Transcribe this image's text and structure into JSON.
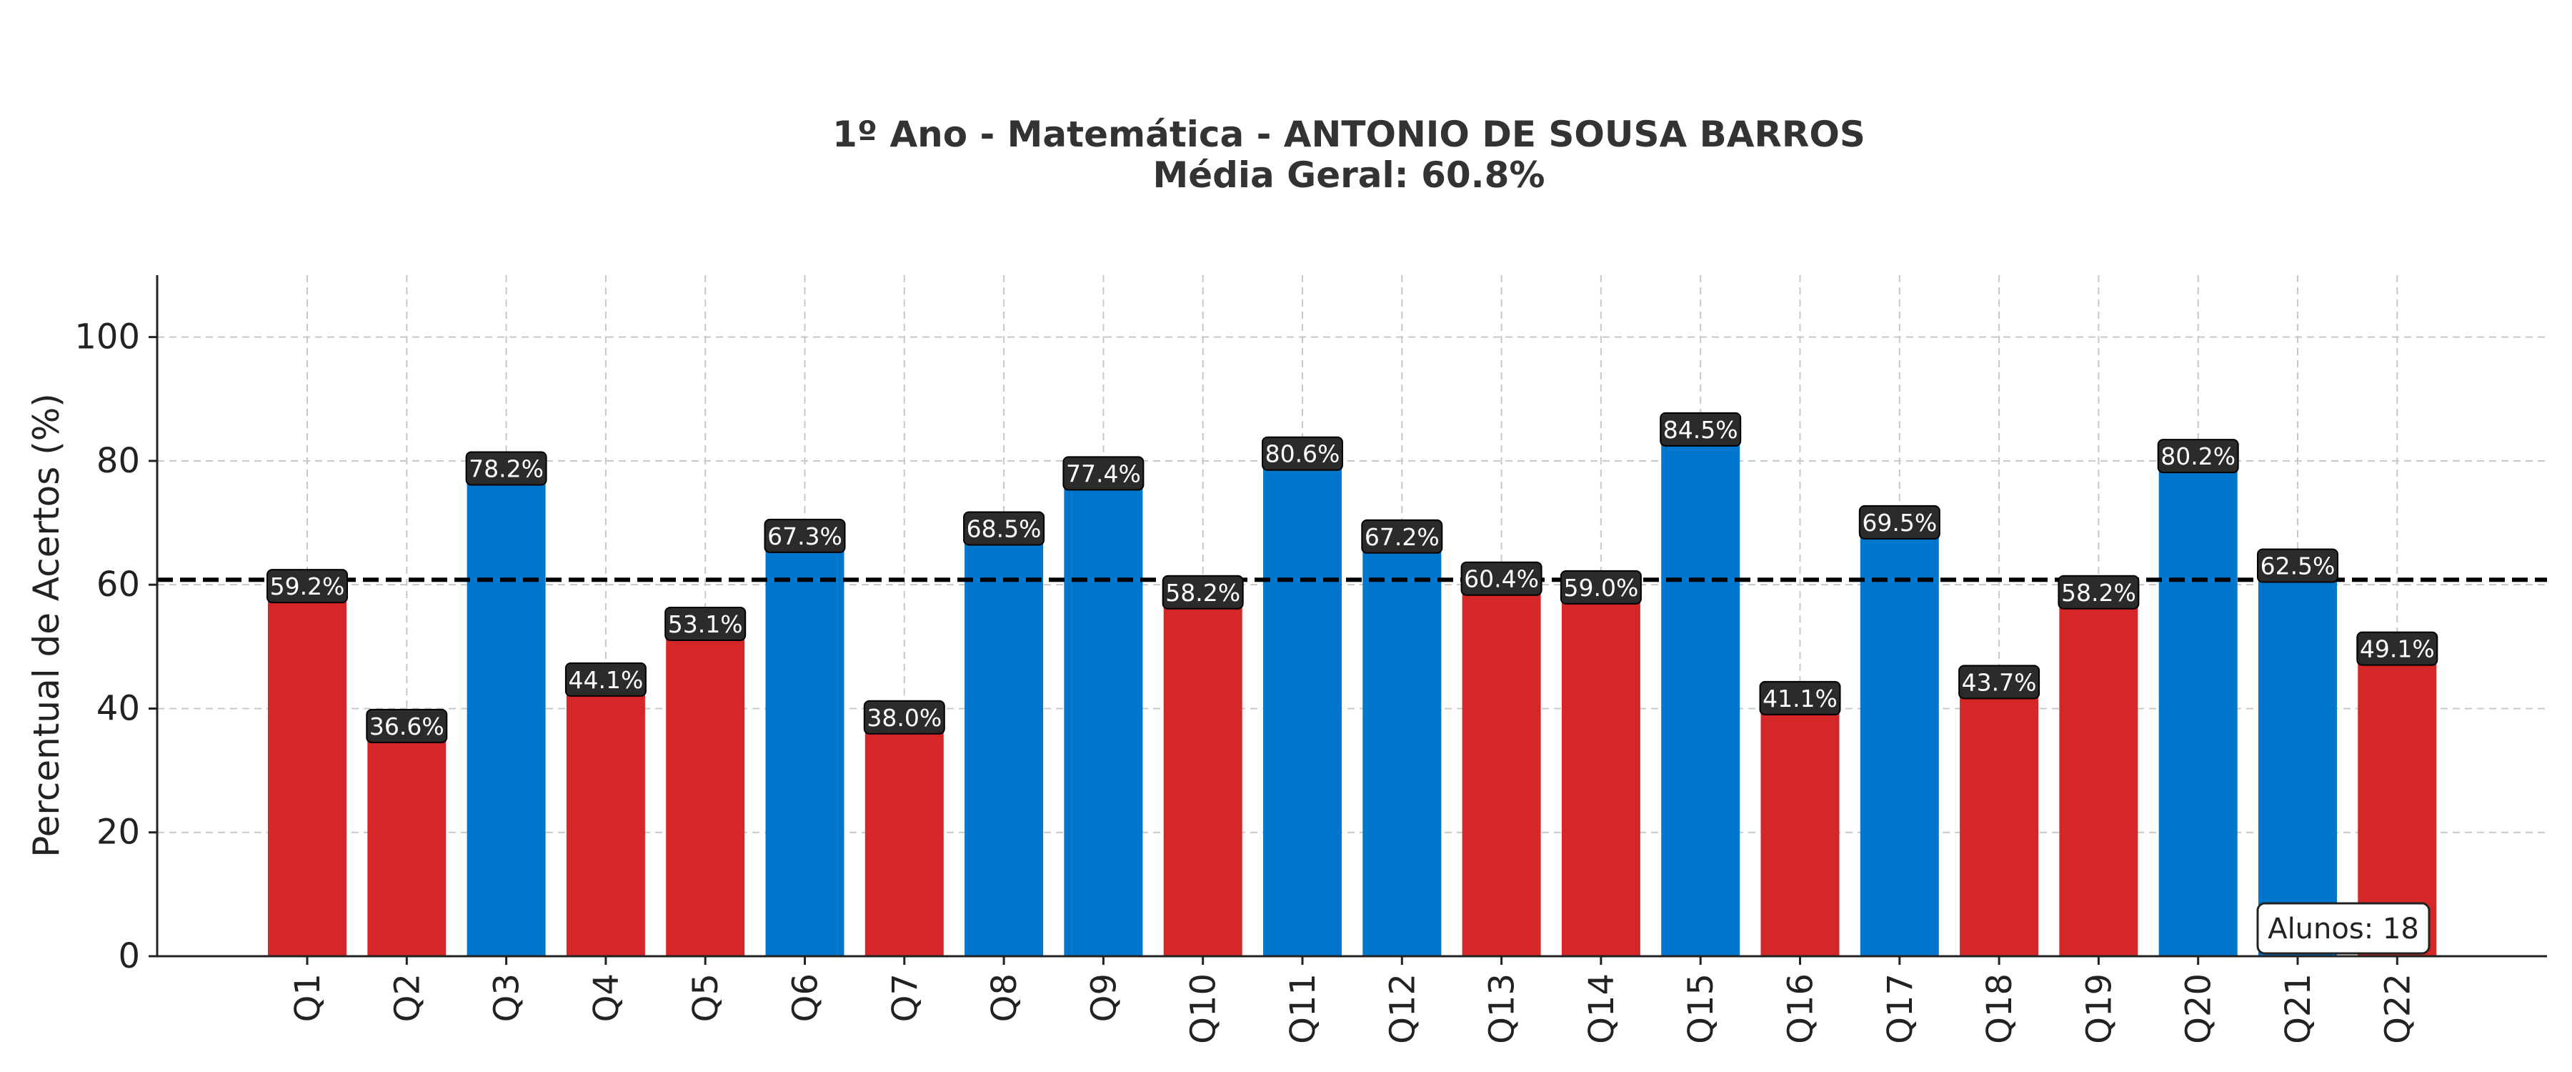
{
  "chart_data": {
    "type": "bar",
    "title": "1º Ano - Matemática - ANTONIO DE SOUSA BARROS",
    "subtitle": "Média Geral: 60.8%",
    "xlabel": "",
    "ylabel": "Percentual de Acertos (%)",
    "ylim": [
      0,
      110
    ],
    "yticks": [
      "0",
      "20",
      "40",
      "60",
      "80",
      "100"
    ],
    "grid": true,
    "categories": [
      "Q1",
      "Q2",
      "Q3",
      "Q4",
      "Q5",
      "Q6",
      "Q7",
      "Q8",
      "Q9",
      "Q10",
      "Q11",
      "Q12",
      "Q13",
      "Q14",
      "Q15",
      "Q16",
      "Q17",
      "Q18",
      "Q19",
      "Q20",
      "Q21",
      "Q22"
    ],
    "values": [
      59.2,
      36.6,
      78.2,
      44.1,
      53.1,
      67.3,
      38.0,
      68.5,
      77.4,
      58.2,
      80.6,
      67.2,
      60.4,
      59.0,
      84.5,
      41.1,
      69.5,
      43.7,
      58.2,
      80.2,
      62.5,
      49.1
    ],
    "value_labels": [
      "59.2%",
      "36.6%",
      "78.2%",
      "44.1%",
      "53.1%",
      "67.3%",
      "38.0%",
      "68.5%",
      "77.4%",
      "58.2%",
      "80.6%",
      "67.2%",
      "60.4%",
      "59.0%",
      "84.5%",
      "41.1%",
      "69.5%",
      "43.7%",
      "58.2%",
      "80.2%",
      "62.5%",
      "49.1%"
    ],
    "reference_line": 60.8,
    "annotation": "Alunos: 18",
    "colors": {
      "above": "#0077cc",
      "below": "#d62728",
      "label_bg": "#2b2b2b",
      "reference": "#000000"
    }
  }
}
